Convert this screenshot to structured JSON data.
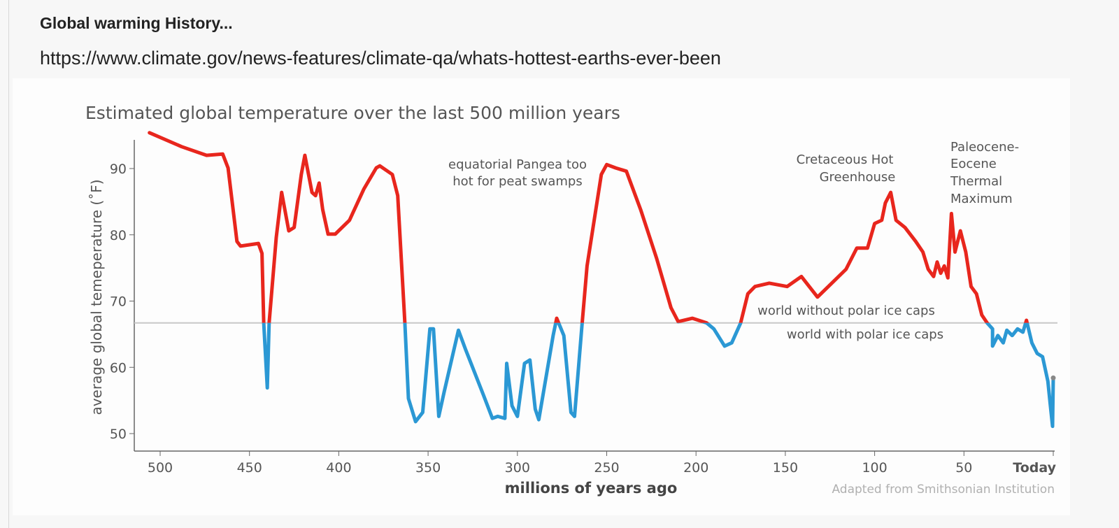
{
  "post": {
    "title": "Global warming History...",
    "link": "https://www.climate.gov/news-features/climate-qa/whats-hottest-earths-ever-been"
  },
  "colors": {
    "above_threshold": "#e8261d",
    "below_threshold": "#2b98d4",
    "threshold_line": "#c8c8c8",
    "text": "#555555"
  },
  "chart_data": {
    "type": "line",
    "title": "Estimated global temperature over the last 500 million years",
    "xlabel": "millions of years ago",
    "ylabel": "average global temeperature (˚F)",
    "xlim": [
      510,
      0
    ],
    "ylim": [
      48,
      96
    ],
    "x_reversed": true,
    "x_ticks": [
      {
        "value": 500,
        "label": "500"
      },
      {
        "value": 450,
        "label": "450"
      },
      {
        "value": 400,
        "label": "400"
      },
      {
        "value": 350,
        "label": "350"
      },
      {
        "value": 300,
        "label": "300"
      },
      {
        "value": 250,
        "label": "250"
      },
      {
        "value": 200,
        "label": "200"
      },
      {
        "value": 150,
        "label": "150"
      },
      {
        "value": 100,
        "label": "100"
      },
      {
        "value": 50,
        "label": "50"
      },
      {
        "value": 0,
        "label": "Today"
      }
    ],
    "y_ticks": [
      50,
      60,
      70,
      80,
      90
    ],
    "grid": false,
    "threshold": 66.7,
    "threshold_labels": {
      "above": "world without polar ice caps",
      "below": "world with polar ice caps"
    },
    "annotations": [
      {
        "lines": [
          "equatorial Pangea too",
          "hot for peat swamps"
        ],
        "x": 300
      },
      {
        "lines": [
          "Cretaceous Hot",
          "Greenhouse"
        ],
        "x": 115
      },
      {
        "lines": [
          "Paleocene-",
          "Eocene",
          "Thermal",
          "Maximum"
        ],
        "x": 56
      }
    ],
    "credit": "Adapted from Smithsonian Institution",
    "series": [
      {
        "points": [
          [
            506,
            95.4
          ],
          [
            488,
            93.3
          ],
          [
            474,
            92.0
          ],
          [
            465,
            92.2
          ],
          [
            462,
            90.1
          ],
          [
            457,
            79.0
          ],
          [
            455,
            78.3
          ],
          [
            445,
            78.7
          ],
          [
            443,
            77.2
          ],
          [
            442,
            66.7
          ],
          [
            440,
            56.9
          ],
          [
            439,
            66.7
          ],
          [
            435,
            79.6
          ],
          [
            432,
            86.4
          ],
          [
            428,
            80.6
          ],
          [
            425,
            81.1
          ],
          [
            421,
            89.1
          ],
          [
            419,
            92.0
          ],
          [
            415,
            86.4
          ],
          [
            413,
            85.9
          ],
          [
            411,
            87.8
          ],
          [
            409,
            83.8
          ],
          [
            406,
            80.1
          ],
          [
            402,
            80.1
          ],
          [
            394,
            82.2
          ],
          [
            386,
            86.9
          ],
          [
            379,
            90.1
          ],
          [
            377,
            90.4
          ],
          [
            370,
            89.1
          ],
          [
            367,
            85.9
          ],
          [
            363,
            66.7
          ],
          [
            361,
            55.3
          ],
          [
            357,
            51.8
          ],
          [
            353,
            53.2
          ],
          [
            349,
            65.8
          ],
          [
            347,
            65.8
          ],
          [
            344,
            52.6
          ],
          [
            341,
            56.3
          ],
          [
            333,
            65.6
          ],
          [
            329,
            62.7
          ],
          [
            319,
            55.8
          ],
          [
            314,
            52.3
          ],
          [
            311,
            52.6
          ],
          [
            307,
            52.3
          ],
          [
            306,
            60.6
          ],
          [
            303,
            54.2
          ],
          [
            300,
            52.6
          ],
          [
            296,
            60.6
          ],
          [
            293,
            61.1
          ],
          [
            290,
            53.7
          ],
          [
            288,
            52.1
          ],
          [
            280,
            64.8
          ],
          [
            278,
            67.4
          ],
          [
            274,
            64.8
          ],
          [
            270,
            53.2
          ],
          [
            268,
            52.6
          ],
          [
            264,
            65.8
          ],
          [
            261,
            75.3
          ],
          [
            253,
            89.1
          ],
          [
            250,
            90.6
          ],
          [
            245,
            90.1
          ],
          [
            239,
            89.6
          ],
          [
            231,
            83.8
          ],
          [
            222,
            76.4
          ],
          [
            214,
            69.0
          ],
          [
            210,
            66.9
          ],
          [
            202,
            67.4
          ],
          [
            194,
            66.7
          ],
          [
            190,
            65.8
          ],
          [
            184,
            63.2
          ],
          [
            180,
            63.7
          ],
          [
            175,
            66.7
          ],
          [
            171,
            71.1
          ],
          [
            167,
            72.2
          ],
          [
            159,
            72.7
          ],
          [
            149,
            72.2
          ],
          [
            141,
            73.7
          ],
          [
            132,
            70.6
          ],
          [
            124,
            72.7
          ],
          [
            116,
            74.8
          ],
          [
            110,
            78.0
          ],
          [
            104,
            78.0
          ],
          [
            100,
            81.7
          ],
          [
            96,
            82.2
          ],
          [
            94,
            84.8
          ],
          [
            91,
            86.4
          ],
          [
            88,
            82.2
          ],
          [
            83,
            81.1
          ],
          [
            77,
            79.0
          ],
          [
            73,
            77.4
          ],
          [
            70,
            74.8
          ],
          [
            67,
            73.7
          ],
          [
            65,
            75.9
          ],
          [
            63,
            74.2
          ],
          [
            61,
            75.3
          ],
          [
            59,
            73.5
          ],
          [
            57,
            83.2
          ],
          [
            55,
            77.4
          ],
          [
            52,
            80.6
          ],
          [
            49,
            77.4
          ],
          [
            46,
            72.2
          ],
          [
            43,
            71.1
          ],
          [
            40,
            67.9
          ],
          [
            37,
            66.7
          ],
          [
            34,
            65.8
          ],
          [
            34,
            63.2
          ],
          [
            31,
            64.8
          ],
          [
            28,
            63.7
          ],
          [
            26,
            65.6
          ],
          [
            23,
            64.8
          ],
          [
            20,
            65.8
          ],
          [
            17,
            65.3
          ],
          [
            15,
            67.1
          ],
          [
            12,
            63.7
          ],
          [
            9,
            62.1
          ],
          [
            6,
            61.6
          ],
          [
            3,
            57.9
          ],
          [
            1.6,
            54.2
          ],
          [
            0.4,
            51.1
          ],
          [
            0,
            58.4
          ]
        ]
      }
    ]
  }
}
